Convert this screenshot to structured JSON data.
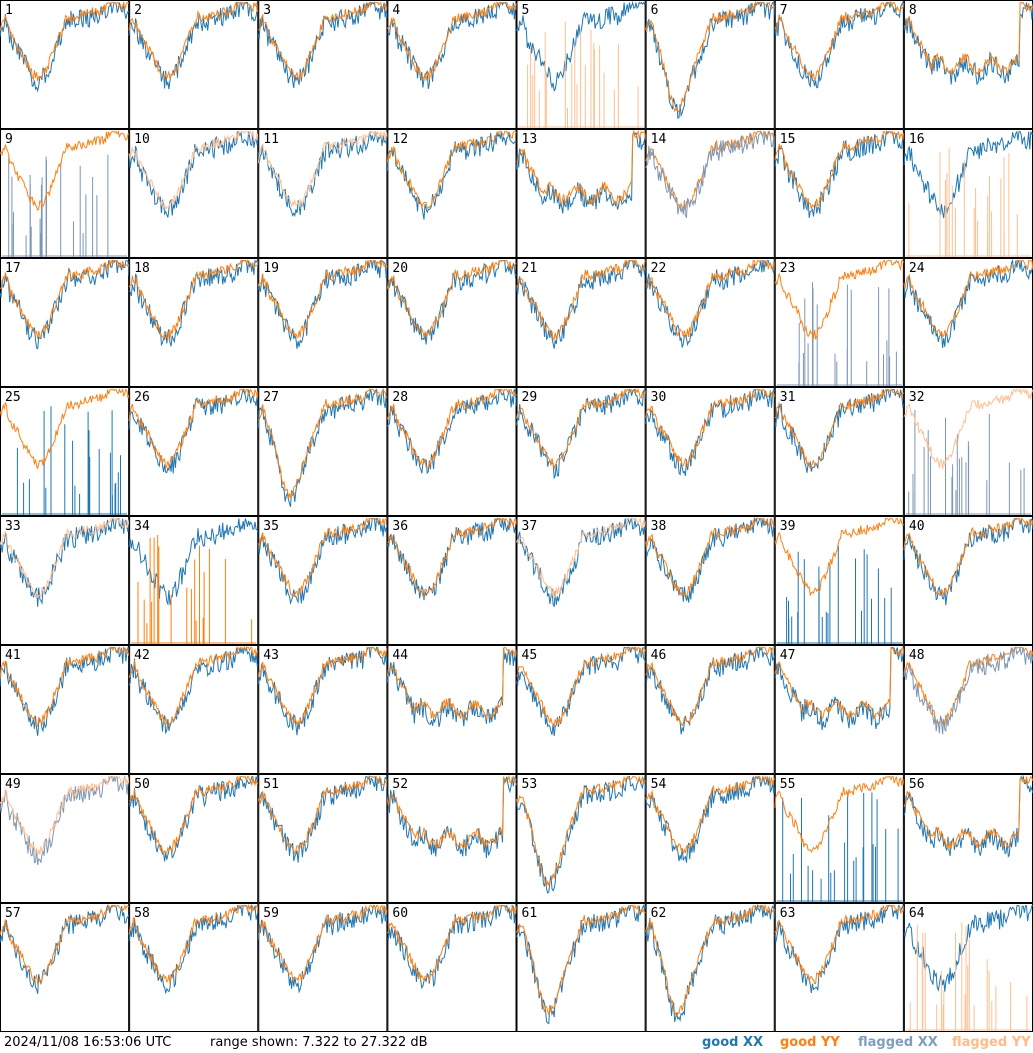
{
  "colors": {
    "good_xx": "#1f77b4",
    "good_yy": "#ff7f0e",
    "flagged_xx": "#7c97b5",
    "flagged_yy": "#ffbf90"
  },
  "footer": {
    "timestamp": "2024/11/08 16:53:06 UTC",
    "range_text": "range shown: 7.322 to 27.322 dB",
    "legend": {
      "good": "good",
      "xx": "XX",
      "yy": "YY",
      "flagged": "flagged"
    }
  },
  "chart_data": {
    "type": "line",
    "grid": "8x8 small multiples, one per antenna",
    "ylim": [
      7.322,
      27.322
    ],
    "yunit": "dB",
    "series_legend": [
      "good XX",
      "good YY",
      "flagged XX",
      "flagged YY"
    ],
    "panels": [
      {
        "id": "1",
        "xx": "good",
        "yy": "good",
        "shape": "std",
        "front": "yy"
      },
      {
        "id": "2",
        "xx": "good",
        "yy": "good",
        "shape": "std",
        "front": "yy"
      },
      {
        "id": "3",
        "xx": "good",
        "yy": "good",
        "shape": "std",
        "front": "yy"
      },
      {
        "id": "4",
        "xx": "good",
        "yy": "good",
        "shape": "std",
        "front": "yy"
      },
      {
        "id": "5",
        "xx": "good",
        "yy": "flagged",
        "shape": "std",
        "yy_mode": "spikes"
      },
      {
        "id": "6",
        "xx": "good",
        "yy": "good",
        "shape": "dip",
        "front": "yy"
      },
      {
        "id": "7",
        "xx": "good",
        "yy": "good",
        "shape": "std",
        "front": "yy"
      },
      {
        "id": "8",
        "xx": "good",
        "yy": "good",
        "shape": "flatmid",
        "front": "yy"
      },
      {
        "id": "9",
        "xx": "flagged",
        "yy": "good",
        "shape": "std",
        "xx_mode": "spikes"
      },
      {
        "id": "10",
        "xx": "good",
        "yy": "flagged",
        "shape": "std",
        "front": "yy"
      },
      {
        "id": "11",
        "xx": "good",
        "yy": "flagged",
        "shape": "std",
        "front": "yy"
      },
      {
        "id": "12",
        "xx": "good",
        "yy": "good",
        "shape": "std",
        "front": "yy"
      },
      {
        "id": "13",
        "xx": "good",
        "yy": "good",
        "shape": "flatmid",
        "front": "yy"
      },
      {
        "id": "14",
        "xx": "flagged",
        "yy": "good",
        "shape": "std",
        "front": "xx"
      },
      {
        "id": "15",
        "xx": "good",
        "yy": "good",
        "shape": "std",
        "front": "yy"
      },
      {
        "id": "16",
        "xx": "good",
        "yy": "flagged",
        "shape": "std",
        "yy_mode": "spikes"
      },
      {
        "id": "17",
        "xx": "good",
        "yy": "good",
        "shape": "std",
        "front": "yy"
      },
      {
        "id": "18",
        "xx": "good",
        "yy": "good",
        "shape": "std",
        "front": "yy"
      },
      {
        "id": "19",
        "xx": "good",
        "yy": "good",
        "shape": "std",
        "front": "yy"
      },
      {
        "id": "20",
        "xx": "good",
        "yy": "good",
        "shape": "std",
        "front": "yy"
      },
      {
        "id": "21",
        "xx": "good",
        "yy": "good",
        "shape": "std",
        "front": "yy"
      },
      {
        "id": "22",
        "xx": "good",
        "yy": "good",
        "shape": "std",
        "front": "yy"
      },
      {
        "id": "23",
        "xx": "flagged",
        "yy": "good",
        "shape": "std",
        "xx_mode": "spikes"
      },
      {
        "id": "24",
        "xx": "good",
        "yy": "good",
        "shape": "std",
        "front": "yy"
      },
      {
        "id": "25",
        "xx": "good",
        "yy": "good",
        "shape": "std",
        "xx_mode": "spikes"
      },
      {
        "id": "26",
        "xx": "good",
        "yy": "good",
        "shape": "std",
        "front": "yy"
      },
      {
        "id": "27",
        "xx": "good",
        "yy": "good",
        "shape": "dip",
        "front": "yy"
      },
      {
        "id": "28",
        "xx": "good",
        "yy": "good",
        "shape": "std",
        "front": "yy"
      },
      {
        "id": "29",
        "xx": "good",
        "yy": "good",
        "shape": "std",
        "front": "yy"
      },
      {
        "id": "30",
        "xx": "good",
        "yy": "good",
        "shape": "std",
        "front": "yy"
      },
      {
        "id": "31",
        "xx": "good",
        "yy": "good",
        "shape": "std",
        "front": "yy"
      },
      {
        "id": "32",
        "xx": "flagged",
        "yy": "flagged",
        "shape": "std",
        "xx_mode": "spikes"
      },
      {
        "id": "33",
        "xx": "good",
        "yy": "flagged",
        "shape": "std",
        "front": "yy"
      },
      {
        "id": "34",
        "xx": "good",
        "yy": "good",
        "shape": "std",
        "yy_mode": "spikes"
      },
      {
        "id": "35",
        "xx": "good",
        "yy": "good",
        "shape": "std",
        "front": "yy"
      },
      {
        "id": "36",
        "xx": "good",
        "yy": "good",
        "shape": "std",
        "front": "yy"
      },
      {
        "id": "37",
        "xx": "good",
        "yy": "flagged",
        "shape": "std",
        "front": "yy"
      },
      {
        "id": "38",
        "xx": "good",
        "yy": "good",
        "shape": "std",
        "front": "yy"
      },
      {
        "id": "39",
        "xx": "good",
        "yy": "good",
        "shape": "std",
        "xx_mode": "spikes"
      },
      {
        "id": "40",
        "xx": "good",
        "yy": "good",
        "shape": "std",
        "front": "yy"
      },
      {
        "id": "41",
        "xx": "good",
        "yy": "good",
        "shape": "std",
        "front": "yy"
      },
      {
        "id": "42",
        "xx": "good",
        "yy": "good",
        "shape": "std",
        "front": "yy"
      },
      {
        "id": "43",
        "xx": "good",
        "yy": "good",
        "shape": "std",
        "front": "yy"
      },
      {
        "id": "44",
        "xx": "good",
        "yy": "good",
        "shape": "flatmid",
        "front": "yy"
      },
      {
        "id": "45",
        "xx": "good",
        "yy": "good",
        "shape": "std",
        "front": "yy"
      },
      {
        "id": "46",
        "xx": "good",
        "yy": "good",
        "shape": "std",
        "front": "yy"
      },
      {
        "id": "47",
        "xx": "good",
        "yy": "good",
        "shape": "flatmid",
        "front": "yy"
      },
      {
        "id": "48",
        "xx": "flagged",
        "yy": "good",
        "shape": "std",
        "front": "xx"
      },
      {
        "id": "49",
        "xx": "flagged",
        "yy": "flagged",
        "shape": "std",
        "front": "yy"
      },
      {
        "id": "50",
        "xx": "good",
        "yy": "good",
        "shape": "std",
        "front": "yy"
      },
      {
        "id": "51",
        "xx": "good",
        "yy": "good",
        "shape": "std",
        "front": "yy"
      },
      {
        "id": "52",
        "xx": "good",
        "yy": "good",
        "shape": "flatmid",
        "front": "yy"
      },
      {
        "id": "53",
        "xx": "good",
        "yy": "good",
        "shape": "dip",
        "front": "yy"
      },
      {
        "id": "54",
        "xx": "good",
        "yy": "good",
        "shape": "std",
        "front": "yy"
      },
      {
        "id": "55",
        "xx": "good",
        "yy": "good",
        "shape": "std",
        "xx_mode": "spikes"
      },
      {
        "id": "56",
        "xx": "good",
        "yy": "good",
        "shape": "flatmid",
        "front": "yy"
      },
      {
        "id": "57",
        "xx": "good",
        "yy": "good",
        "shape": "std",
        "front": "yy"
      },
      {
        "id": "58",
        "xx": "good",
        "yy": "good",
        "shape": "std",
        "front": "yy"
      },
      {
        "id": "59",
        "xx": "good",
        "yy": "good",
        "shape": "std",
        "front": "yy"
      },
      {
        "id": "60",
        "xx": "good",
        "yy": "good",
        "shape": "std",
        "front": "yy"
      },
      {
        "id": "61",
        "xx": "good",
        "yy": "good",
        "shape": "dip",
        "front": "yy"
      },
      {
        "id": "62",
        "xx": "good",
        "yy": "good",
        "shape": "dip",
        "front": "yy"
      },
      {
        "id": "63",
        "xx": "good",
        "yy": "good",
        "shape": "std",
        "front": "yy"
      },
      {
        "id": "64",
        "xx": "good",
        "yy": "flagged",
        "shape": "std",
        "yy_mode": "spikes"
      }
    ]
  }
}
